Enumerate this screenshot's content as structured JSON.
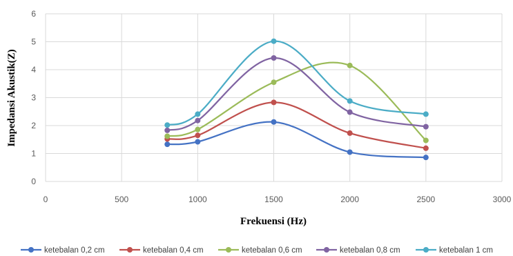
{
  "chart_data": {
    "type": "line",
    "title": "",
    "xlabel": "Frekuensi (Hz)",
    "ylabel": "Impedansi Akustik(Z)",
    "xlim": [
      0,
      3000
    ],
    "ylim": [
      0,
      6
    ],
    "xticks": [
      "0",
      "500",
      "1000",
      "1500",
      "2000",
      "2500",
      "3000"
    ],
    "yticks": [
      "0",
      "1",
      "2",
      "3",
      "4",
      "5",
      "6"
    ],
    "grid": true,
    "smooth": true,
    "legend_position": "bottom",
    "x": [
      800,
      1000,
      1500,
      2000,
      2500
    ],
    "series": [
      {
        "name": "ketebalan 0,2 cm",
        "color": "#4472c4",
        "values": [
          1.33,
          1.42,
          2.13,
          1.05,
          0.86
        ]
      },
      {
        "name": "ketebalan 0,4 cm",
        "color": "#c0504d",
        "values": [
          1.52,
          1.65,
          2.83,
          1.73,
          1.19
        ]
      },
      {
        "name": "ketebalan 0,6 cm",
        "color": "#9bbb59",
        "values": [
          1.62,
          1.86,
          3.55,
          4.15,
          1.47
        ]
      },
      {
        "name": "ketebalan 0,8 cm",
        "color": "#8064a2",
        "values": [
          1.83,
          2.18,
          4.42,
          2.48,
          1.96
        ]
      },
      {
        "name": "ketebalan 1 cm",
        "color": "#4bacc6",
        "values": [
          2.02,
          2.41,
          5.02,
          2.88,
          2.41
        ]
      }
    ]
  }
}
